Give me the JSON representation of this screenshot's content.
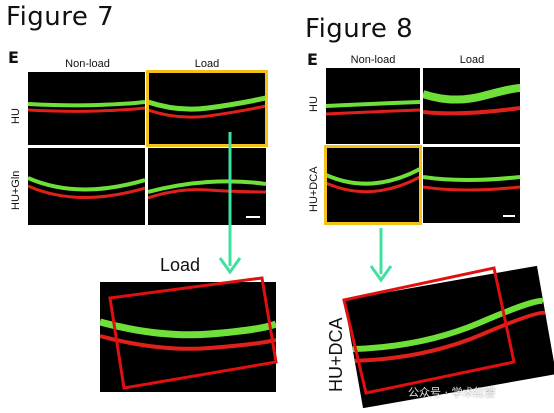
{
  "figure7": {
    "title": "Figure 7",
    "panel_letter": "E",
    "col_labels": [
      "Non-load",
      "Load"
    ],
    "row_labels": [
      "HU",
      "HU+Gln"
    ],
    "zoom_label": "Load"
  },
  "figure8": {
    "title": "Figure 8",
    "panel_letter": "E",
    "col_labels": [
      "Non-load",
      "Load"
    ],
    "row_labels": [
      "HU",
      "HU+DCA"
    ],
    "zoom_label": "HU+DCA"
  },
  "watermark": "公众号 · 学术红警",
  "colors": {
    "highlight_yellow": "#f2c21a",
    "arrow_green": "#3fe0a0",
    "zoom_box_red": "#e01010",
    "green_signal": "#6fe03a",
    "red_signal": "#e0201a"
  }
}
